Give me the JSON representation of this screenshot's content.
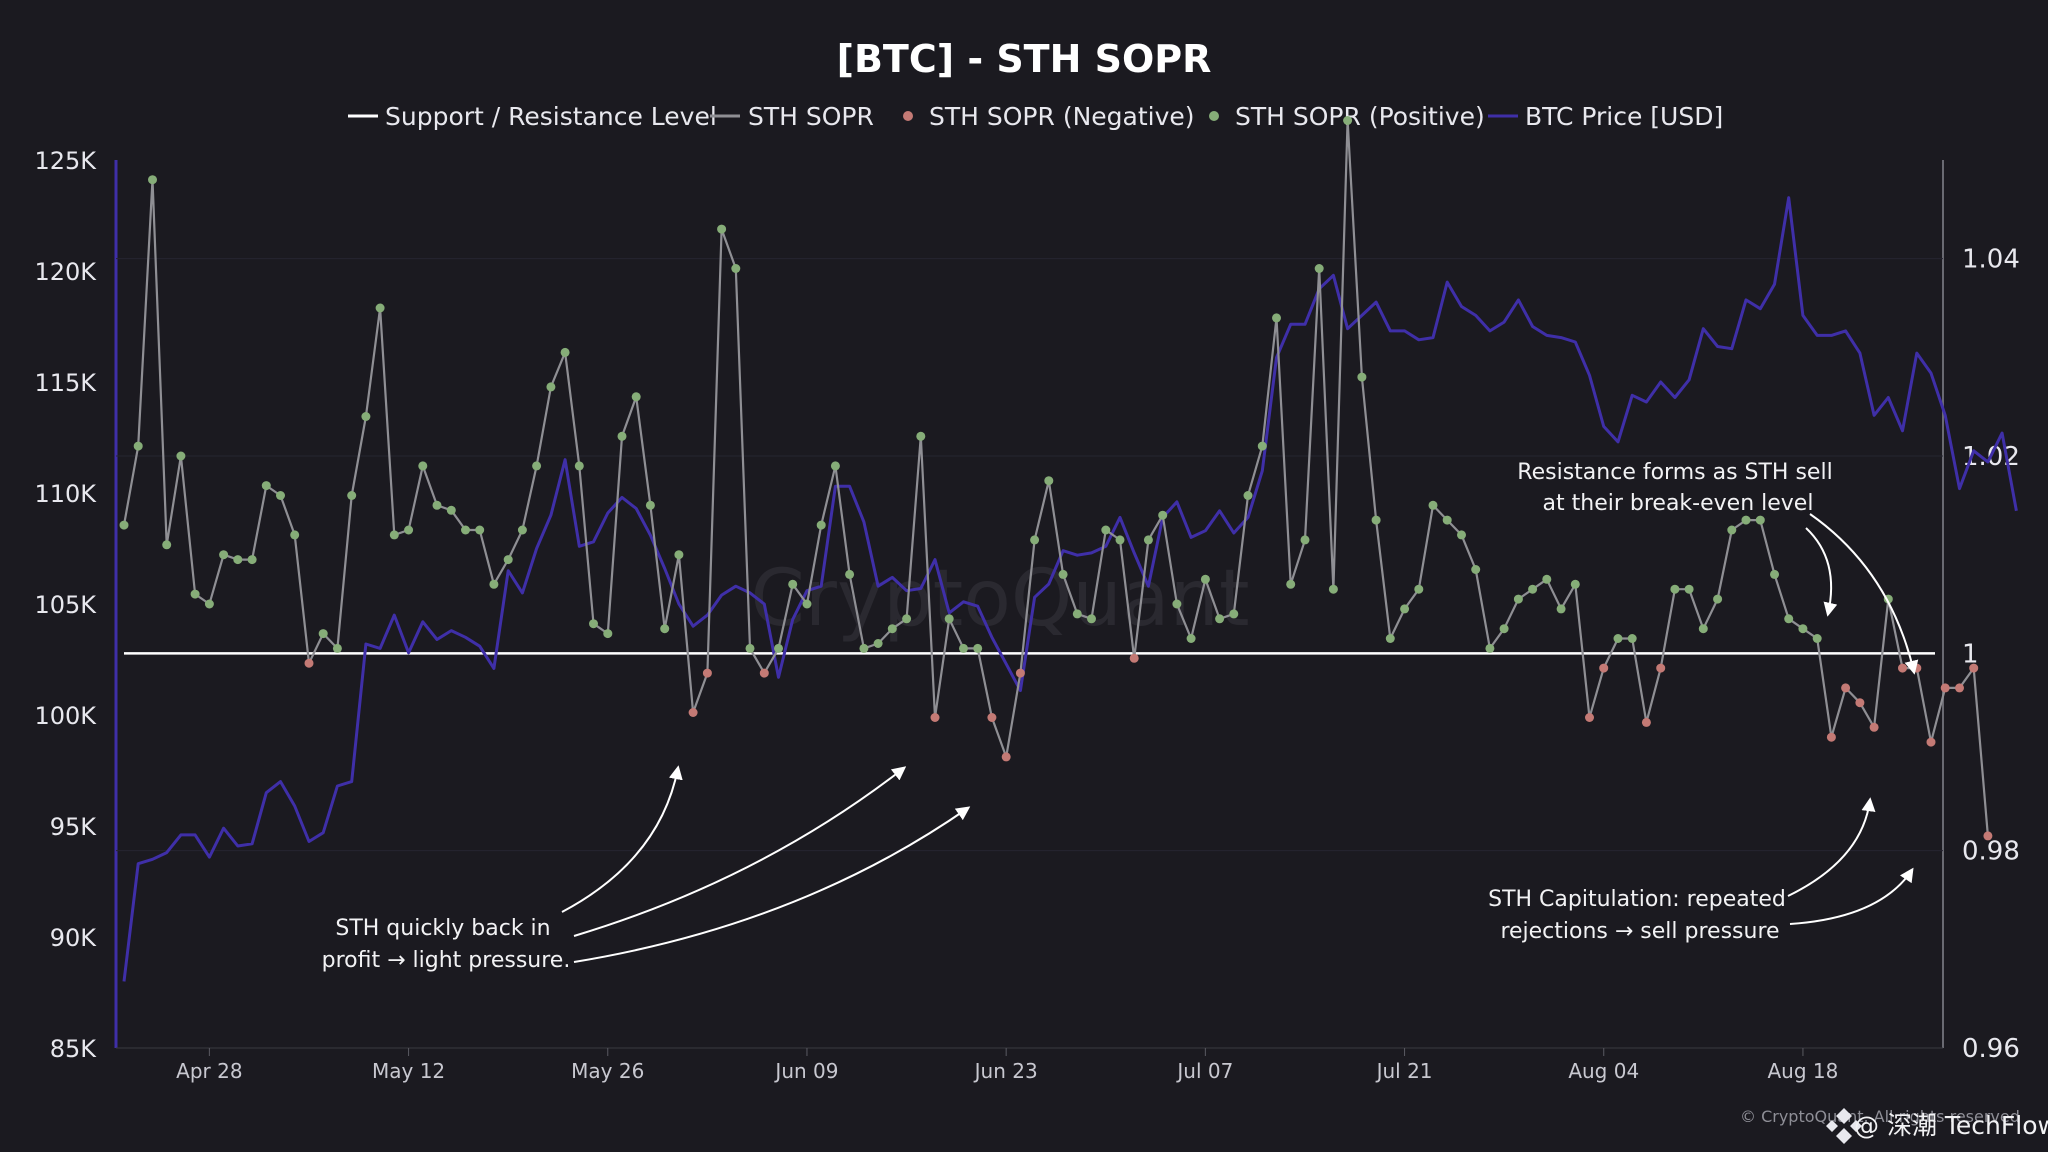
{
  "title": "[BTC] - STH SOPR",
  "legend": [
    {
      "label": "Support / Resistance Level",
      "color": "#ffffff",
      "kind": "line"
    },
    {
      "label": "STH SOPR",
      "color": "#8f8f94",
      "kind": "line"
    },
    {
      "label": "STH SOPR (Negative)",
      "color": "#c47a75",
      "kind": "dot"
    },
    {
      "label": "STH SOPR (Positive)",
      "color": "#86ad78",
      "kind": "dot"
    }
  ],
  "legend_price": {
    "label": "BTC Price [USD]",
    "color": "#3f2fa8"
  },
  "watermark": "CryptoQuant",
  "copyright": "© CryptoQuant. All rights reserved",
  "brand": "@ 深潮 TechFlow",
  "annotations": {
    "left_line1": "STH quickly back in",
    "left_line2": "profit → light pressure.",
    "top_line1": "Resistance forms as STH sell",
    "top_line2": "at their break-even level",
    "bottom_line1": "STH Capitulation: repeated",
    "bottom_line2": "rejections → sell pressure"
  },
  "chart_data": {
    "type": "line",
    "x_range": [
      "2025-04-22",
      "2025-08-27"
    ],
    "x_ticks": [
      "Apr 28",
      "May 12",
      "May 26",
      "Jun 09",
      "Jun 23",
      "Jul 07",
      "Jul 21",
      "Aug 04",
      "Aug 18"
    ],
    "left_axis": {
      "min": 85000,
      "max": 125000,
      "ticks": [
        "85K",
        "90K",
        "95K",
        "100K",
        "105K",
        "110K",
        "115K",
        "120K",
        "125K"
      ]
    },
    "right_axis": {
      "min": 0.96,
      "max": 1.05,
      "ticks": [
        "0.96",
        "0.98",
        "1",
        "1.02",
        "1.04"
      ]
    },
    "support_resistance_level": 1.0,
    "sopr_colors": {
      "line": "#8f8f94",
      "positive": "#86ad78",
      "negative": "#c47a75"
    },
    "price_color": "#3f2fa8",
    "btc_price": {
      "start_date": "2025-04-22",
      "values": [
        88000,
        93300,
        93500,
        93800,
        94600,
        94600,
        93600,
        94900,
        94100,
        94200,
        96500,
        97000,
        95900,
        94300,
        94700,
        96800,
        97000,
        103200,
        103000,
        104500,
        102800,
        104200,
        103400,
        103800,
        103500,
        103100,
        102100,
        106500,
        105500,
        107500,
        109000,
        111500,
        107600,
        107800,
        109100,
        109800,
        109300,
        108100,
        106600,
        105000,
        104000,
        104500,
        105400,
        105800,
        105500,
        105000,
        101700,
        104300,
        105600,
        105800,
        110300,
        110300,
        108700,
        105800,
        106200,
        105600,
        105700,
        107000,
        104600,
        105100,
        104900,
        103500,
        102300,
        101100,
        105300,
        105900,
        107400,
        107200,
        107300,
        107600,
        108900,
        107300,
        105800,
        108900,
        109600,
        108000,
        108300,
        109200,
        108200,
        108900,
        111000,
        116100,
        117600,
        117600,
        119200,
        119800,
        117400,
        118000,
        118600,
        117300,
        117300,
        116900,
        117000,
        119500,
        118400,
        118000,
        117300,
        117700,
        118700,
        117500,
        117100,
        117000,
        116800,
        115300,
        113000,
        112300,
        114400,
        114100,
        115000,
        114300,
        115100,
        117400,
        116600,
        116500,
        118700,
        118300,
        119400,
        123300,
        118000,
        117100,
        117100,
        117300,
        116300,
        113500,
        114300,
        112800,
        116300,
        115400,
        113500,
        110200,
        111900,
        111400,
        112700,
        109200
      ]
    },
    "sth_sopr": {
      "start_date": "2025-04-22",
      "values": [
        1.013,
        1.021,
        1.048,
        1.011,
        1.02,
        1.006,
        1.005,
        1.01,
        1.0095,
        1.0095,
        1.017,
        1.016,
        1.012,
        0.999,
        1.002,
        1.0005,
        1.016,
        1.024,
        1.035,
        1.012,
        1.0125,
        1.019,
        1.015,
        1.0145,
        1.0125,
        1.0125,
        1.007,
        1.0095,
        1.0125,
        1.019,
        1.027,
        1.0305,
        1.019,
        1.003,
        1.002,
        1.022,
        1.026,
        1.015,
        1.0025,
        1.01,
        0.994,
        0.998,
        1.043,
        1.039,
        1.0005,
        0.998,
        1.0005,
        1.007,
        1.005,
        1.013,
        1.019,
        1.008,
        1.0005,
        1.001,
        1.0025,
        1.0035,
        1.022,
        0.9935,
        1.0035,
        1.0005,
        1.0005,
        0.9935,
        0.9895,
        0.998,
        1.0115,
        1.0175,
        1.008,
        1.004,
        1.0035,
        1.0125,
        1.0115,
        0.9995,
        1.0115,
        1.014,
        1.005,
        1.0015,
        1.0075,
        1.0035,
        1.004,
        1.016,
        1.021,
        1.034,
        1.007,
        1.0115,
        1.039,
        1.0065,
        1.054,
        1.028,
        1.0135,
        1.0015,
        1.0045,
        1.0065,
        1.015,
        1.0135,
        1.012,
        1.0085,
        1.0005,
        1.0025,
        1.0055,
        1.0065,
        1.0075,
        1.0045,
        1.007,
        0.9935,
        0.9985,
        1.0015,
        1.0015,
        0.993,
        0.9985,
        1.0065,
        1.0065,
        1.0025,
        1.0055,
        1.0125,
        1.0135,
        1.0135,
        1.008,
        1.0035,
        1.0025,
        1.0015,
        0.9915,
        0.9965,
        0.995,
        0.9925,
        1.0055,
        0.9985,
        0.9985,
        0.991,
        0.9965,
        0.9965,
        0.9985,
        0.9815
      ]
    }
  }
}
